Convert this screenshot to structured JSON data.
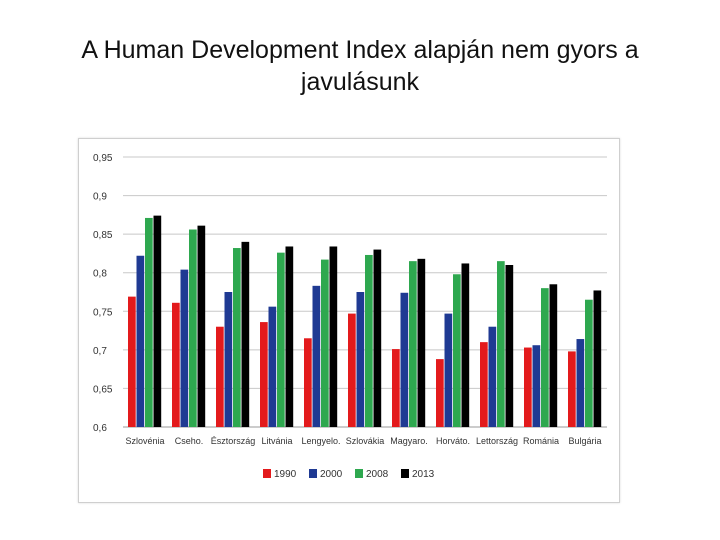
{
  "title": "A Human Development Index alapján nem gyors a javulásunk",
  "chart_data": {
    "type": "bar",
    "categories": [
      "Szlovénia",
      "Cseho.",
      "Észtország",
      "Litvánia",
      "Lengyelo.",
      "Szlovákia",
      "Magyaro.",
      "Horváto.",
      "Lettország",
      "Románia",
      "Bulgária"
    ],
    "series": [
      {
        "name": "1990",
        "color": "#e31a1c",
        "values": [
          0.769,
          0.761,
          0.73,
          0.736,
          0.715,
          0.747,
          0.701,
          0.688,
          0.71,
          0.703,
          0.698
        ]
      },
      {
        "name": "2000",
        "color": "#1f3a93",
        "values": [
          0.822,
          0.804,
          0.775,
          0.756,
          0.783,
          0.775,
          0.774,
          0.747,
          0.73,
          0.706,
          0.714
        ]
      },
      {
        "name": "2008",
        "color": "#2ea84f",
        "values": [
          0.871,
          0.856,
          0.832,
          0.826,
          0.817,
          0.823,
          0.815,
          0.798,
          0.815,
          0.78,
          0.765
        ]
      },
      {
        "name": "2013",
        "color": "#000000",
        "values": [
          0.874,
          0.861,
          0.84,
          0.834,
          0.834,
          0.83,
          0.818,
          0.812,
          0.81,
          0.785,
          0.777
        ]
      }
    ],
    "ylim": [
      0.6,
      0.95
    ],
    "yticks": [
      "0,6",
      "0,65",
      "0,7",
      "0,75",
      "0,8",
      "0,85",
      "0,9",
      "0,95"
    ],
    "grid": true,
    "legend_position": "bottom"
  }
}
